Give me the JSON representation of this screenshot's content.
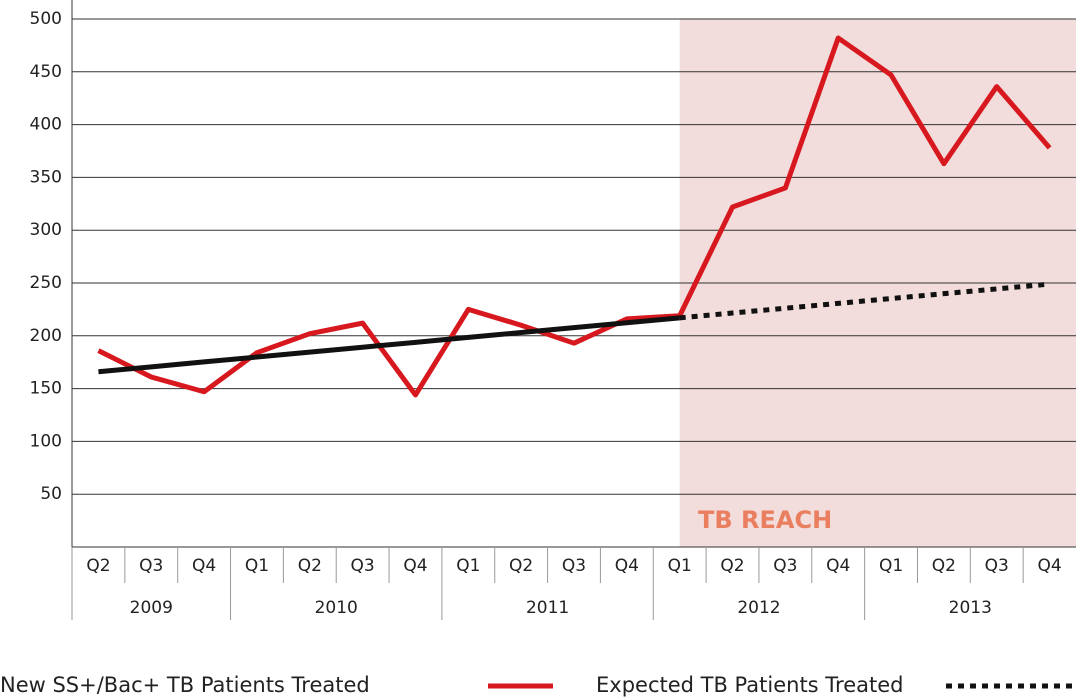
{
  "chart_data": {
    "type": "line",
    "categories": [
      "Q2",
      "Q3",
      "Q4",
      "Q1",
      "Q2",
      "Q3",
      "Q4",
      "Q1",
      "Q2",
      "Q3",
      "Q4",
      "Q1",
      "Q2",
      "Q3",
      "Q4",
      "Q1",
      "Q2",
      "Q3",
      "Q4"
    ],
    "year_groups": [
      {
        "label": "2009",
        "count": 3
      },
      {
        "label": "2010",
        "count": 4
      },
      {
        "label": "2011",
        "count": 4
      },
      {
        "label": "2012",
        "count": 4
      },
      {
        "label": "2013",
        "count": 4
      }
    ],
    "series": [
      {
        "name": "New SS+/Bac+ TB Patients Treated",
        "color": "#d7191f",
        "values": [
          186,
          161,
          147,
          184,
          202,
          212,
          144,
          225,
          210,
          193,
          216,
          219,
          322,
          340,
          482,
          447,
          363,
          436,
          378
        ]
      },
      {
        "name": "Expected TB Patients Treated",
        "color": "#111111",
        "dash_from": 11,
        "values": [
          166,
          170.6,
          175.3,
          179.9,
          184.5,
          189.2,
          193.8,
          198.5,
          203.1,
          207.7,
          212.4,
          217,
          221.6,
          226.1,
          230.7,
          235.3,
          239.9,
          244.4,
          249
        ]
      }
    ],
    "highlight": {
      "label": "TB REACH",
      "from": 11,
      "color": "#f2dcdc",
      "label_color": "#ea7f5f"
    },
    "ylim": [
      0,
      500
    ],
    "yticks": [
      50,
      100,
      150,
      200,
      250,
      300,
      350,
      400,
      450,
      500
    ],
    "grid": true
  }
}
